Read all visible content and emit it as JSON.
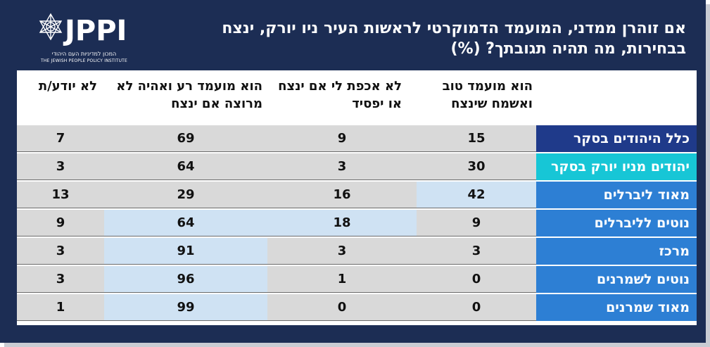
{
  "logo": {
    "name": "JPPI",
    "tagline_he": "המכון למדיניות העם היהודי",
    "tagline_en": "THE JEWISH PEOPLE POLICY INSTITUTE"
  },
  "title": "אם זוהרן ממדני, המועמד הדמוקרטי לראשות העיר ניו יורק, ינצח בבחירות, מה תהיה תגובתך? (%)",
  "columns": [
    "הוא מועמד טוב ואשמח שינצח",
    "לא אכפת לי אם ינצח או יפסיד",
    "הוא מועמד רע ואהיה לא מרוצה אם ינצח",
    "לא יודע/ת"
  ],
  "rows": [
    {
      "label": "כלל היהודים בסקר",
      "values": [
        "15",
        "9",
        "69",
        "7"
      ],
      "label_color": "#1f3a8a",
      "highlight": []
    },
    {
      "label": "יהודים מניו יורק בסקר",
      "values": [
        "30",
        "3",
        "64",
        "3"
      ],
      "label_color": "#17c6d6",
      "highlight": []
    },
    {
      "label": "מאוד ליברלים",
      "values": [
        "42",
        "16",
        "29",
        "13"
      ],
      "label_color": "#2d7fd4",
      "highlight": [
        0
      ]
    },
    {
      "label": "נוטים לליברלים",
      "values": [
        "9",
        "18",
        "64",
        "9"
      ],
      "label_color": "#2d7fd4",
      "highlight": [
        1,
        2
      ]
    },
    {
      "label": "מרכז",
      "values": [
        "3",
        "3",
        "91",
        "3"
      ],
      "label_color": "#2d7fd4",
      "highlight": [
        2
      ]
    },
    {
      "label": "נוטים לשמרנים",
      "values": [
        "0",
        "1",
        "96",
        "3"
      ],
      "label_color": "#2d7fd4",
      "highlight": [
        2
      ]
    },
    {
      "label": "מאוד שמרנים",
      "values": [
        "0",
        "0",
        "99",
        "1"
      ],
      "label_color": "#2d7fd4",
      "highlight": [
        2
      ]
    }
  ],
  "colors": {
    "panel": "#1c2d54",
    "cell_gray": "#d9d9d9",
    "cell_highlight": "#cfe2f3"
  }
}
